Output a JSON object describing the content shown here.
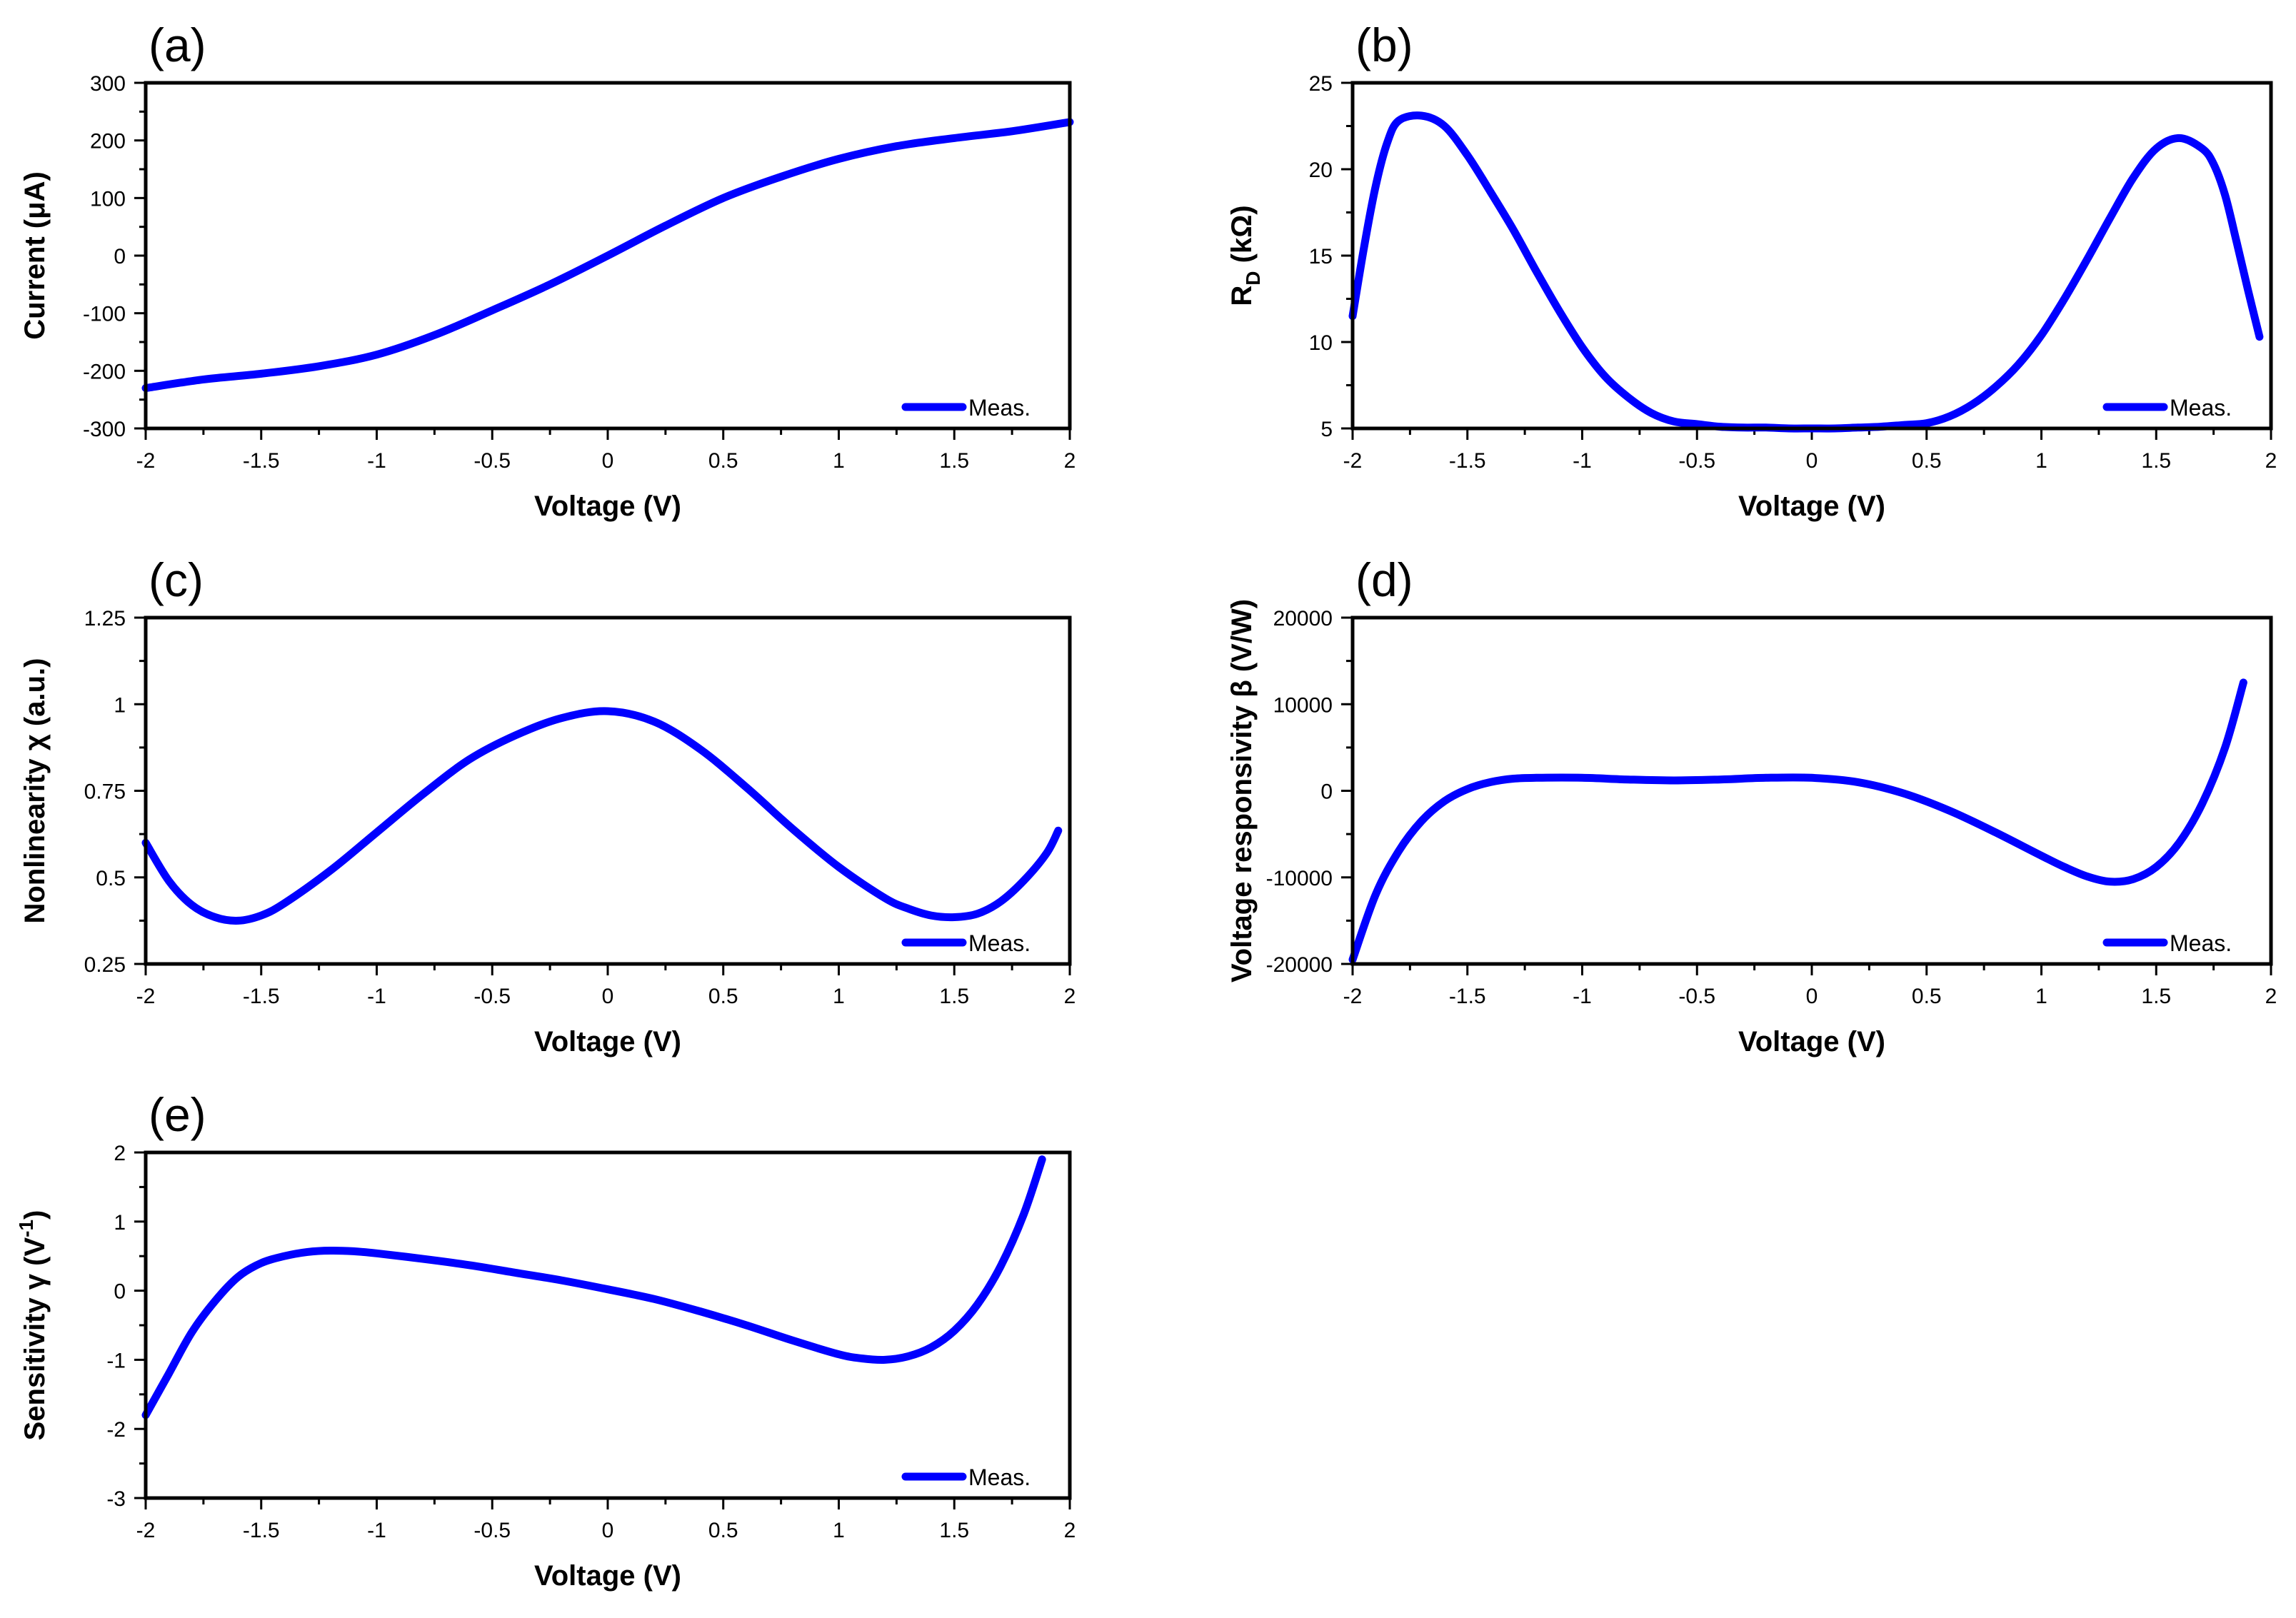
{
  "chart_data": [
    {
      "panel": "(a)",
      "type": "line",
      "xlabel": "Voltage (V)",
      "ylabel": "Current (μA)",
      "xlim": [
        -2,
        2
      ],
      "ylim": [
        -300,
        300
      ],
      "xticks": [
        -2,
        -1.5,
        -1,
        -0.5,
        0,
        0.5,
        1,
        1.5,
        2
      ],
      "yticks": [
        -300,
        -200,
        -100,
        0,
        100,
        200,
        300
      ],
      "legend": "Meas.",
      "legend_position": "bottom-right",
      "series": [
        {
          "name": "Meas.",
          "x": [
            -2,
            -1.75,
            -1.5,
            -1.25,
            -1,
            -0.75,
            -0.5,
            -0.25,
            0,
            0.25,
            0.5,
            0.75,
            1,
            1.25,
            1.5,
            1.75,
            2
          ],
          "y": [
            -230,
            -215,
            -205,
            -192,
            -172,
            -138,
            -95,
            -50,
            0,
            52,
            100,
            137,
            168,
            190,
            204,
            216,
            232
          ]
        }
      ]
    },
    {
      "panel": "(b)",
      "type": "line",
      "xlabel": "Voltage (V)",
      "ylabel_main": "R",
      "ylabel_sub": "D",
      "ylabel_rest": " (kΩ)",
      "xlim": [
        -2,
        2
      ],
      "ylim": [
        5,
        25
      ],
      "xticks": [
        -2,
        -1.5,
        -1,
        -0.5,
        0,
        0.5,
        1,
        1.5,
        2
      ],
      "yticks": [
        5,
        10,
        15,
        20,
        25
      ],
      "legend": "Meas.",
      "legend_position": "bottom-right",
      "series": [
        {
          "name": "Meas.",
          "x": [
            -2,
            -1.95,
            -1.9,
            -1.85,
            -1.8,
            -1.7,
            -1.6,
            -1.5,
            -1.4,
            -1.3,
            -1.2,
            -1.1,
            -1.0,
            -0.9,
            -0.8,
            -0.7,
            -0.6,
            -0.5,
            -0.4,
            -0.3,
            -0.2,
            -0.1,
            0,
            0.1,
            0.2,
            0.3,
            0.4,
            0.5,
            0.6,
            0.7,
            0.8,
            0.9,
            1.0,
            1.1,
            1.2,
            1.3,
            1.4,
            1.5,
            1.6,
            1.7,
            1.75,
            1.8,
            1.85,
            1.9,
            1.95
          ],
          "y": [
            11.5,
            15.5,
            19.0,
            21.5,
            22.8,
            23.1,
            22.5,
            20.8,
            18.7,
            16.5,
            14.1,
            11.8,
            9.7,
            8.0,
            6.8,
            5.9,
            5.4,
            5.25,
            5.1,
            5.05,
            5.05,
            5.0,
            5.0,
            5.0,
            5.05,
            5.1,
            5.2,
            5.3,
            5.7,
            6.4,
            7.4,
            8.7,
            10.4,
            12.5,
            14.8,
            17.2,
            19.5,
            21.2,
            21.8,
            21.2,
            20.3,
            18.5,
            15.8,
            13.0,
            10.3
          ]
        }
      ]
    },
    {
      "panel": "(c)",
      "type": "line",
      "xlabel": "Voltage (V)",
      "ylabel": "Nonlinearity χ (a.u.)",
      "xlim": [
        -2,
        2
      ],
      "ylim": [
        0.25,
        1.25
      ],
      "xticks": [
        -2,
        -1.5,
        -1,
        -0.5,
        0,
        0.5,
        1,
        1.5,
        2
      ],
      "yticks": [
        0.25,
        0.5,
        0.75,
        1,
        1.25
      ],
      "legend": "Meas.",
      "legend_position": "bottom-right",
      "series": [
        {
          "name": "Meas.",
          "x": [
            -2,
            -1.9,
            -1.8,
            -1.7,
            -1.6,
            -1.5,
            -1.4,
            -1.2,
            -1.0,
            -0.8,
            -0.6,
            -0.4,
            -0.2,
            0,
            0.2,
            0.4,
            0.6,
            0.8,
            1.0,
            1.2,
            1.3,
            1.4,
            1.5,
            1.6,
            1.7,
            1.8,
            1.9,
            1.95
          ],
          "y": [
            0.6,
            0.49,
            0.42,
            0.385,
            0.375,
            0.39,
            0.425,
            0.52,
            0.63,
            0.74,
            0.84,
            0.91,
            0.96,
            0.98,
            0.95,
            0.87,
            0.76,
            0.64,
            0.53,
            0.44,
            0.41,
            0.39,
            0.385,
            0.395,
            0.43,
            0.49,
            0.57,
            0.635
          ]
        }
      ]
    },
    {
      "panel": "(d)",
      "type": "line",
      "xlabel": "Voltage (V)",
      "ylabel": "Voltage responsivity β (V/W)",
      "xlim": [
        -2,
        2
      ],
      "ylim": [
        -20000,
        20000
      ],
      "xticks": [
        -2,
        -1.5,
        -1,
        -0.5,
        0,
        0.5,
        1,
        1.5,
        2
      ],
      "yticks": [
        -20000,
        -10000,
        0,
        10000,
        20000
      ],
      "legend": "Meas.",
      "legend_position": "bottom-right",
      "series": [
        {
          "name": "Meas.",
          "x": [
            -2,
            -1.9,
            -1.8,
            -1.7,
            -1.6,
            -1.5,
            -1.4,
            -1.3,
            -1.2,
            -1.0,
            -0.8,
            -0.6,
            -0.4,
            -0.2,
            0,
            0.2,
            0.4,
            0.6,
            0.8,
            1.0,
            1.1,
            1.2,
            1.3,
            1.4,
            1.5,
            1.6,
            1.7,
            1.8,
            1.88
          ],
          "y": [
            -19500,
            -12000,
            -7000,
            -3500,
            -1200,
            200,
            1000,
            1400,
            1500,
            1500,
            1300,
            1200,
            1300,
            1500,
            1500,
            1000,
            -300,
            -2300,
            -4800,
            -7500,
            -8800,
            -9900,
            -10500,
            -10200,
            -8800,
            -6000,
            -1500,
            5000,
            12500
          ]
        }
      ]
    },
    {
      "panel": "(e)",
      "type": "line",
      "xlabel": "Voltage (V)",
      "ylabel_main": "Sensitivity γ (V",
      "ylabel_sup": "-1",
      "ylabel_rest": ")",
      "xlim": [
        -2,
        2
      ],
      "ylim": [
        -3,
        2
      ],
      "xticks": [
        -2,
        -1.5,
        -1,
        -0.5,
        0,
        0.5,
        1,
        1.5,
        2
      ],
      "yticks": [
        -3,
        -2,
        -1,
        0,
        1,
        2
      ],
      "legend": "Meas.",
      "legend_position": "bottom-right",
      "series": [
        {
          "name": "Meas.",
          "x": [
            -2,
            -1.9,
            -1.8,
            -1.7,
            -1.6,
            -1.5,
            -1.4,
            -1.3,
            -1.2,
            -1.1,
            -1.0,
            -0.8,
            -0.6,
            -0.4,
            -0.2,
            0,
            0.2,
            0.4,
            0.6,
            0.8,
            1.0,
            1.1,
            1.2,
            1.3,
            1.4,
            1.5,
            1.6,
            1.7,
            1.8,
            1.88
          ],
          "y": [
            -1.8,
            -1.2,
            -0.6,
            -0.15,
            0.2,
            0.4,
            0.5,
            0.56,
            0.58,
            0.57,
            0.54,
            0.46,
            0.37,
            0.26,
            0.15,
            0.02,
            -0.12,
            -0.3,
            -0.5,
            -0.72,
            -0.92,
            -0.98,
            -1.0,
            -0.95,
            -0.82,
            -0.58,
            -0.2,
            0.35,
            1.1,
            1.9
          ]
        }
      ]
    }
  ]
}
